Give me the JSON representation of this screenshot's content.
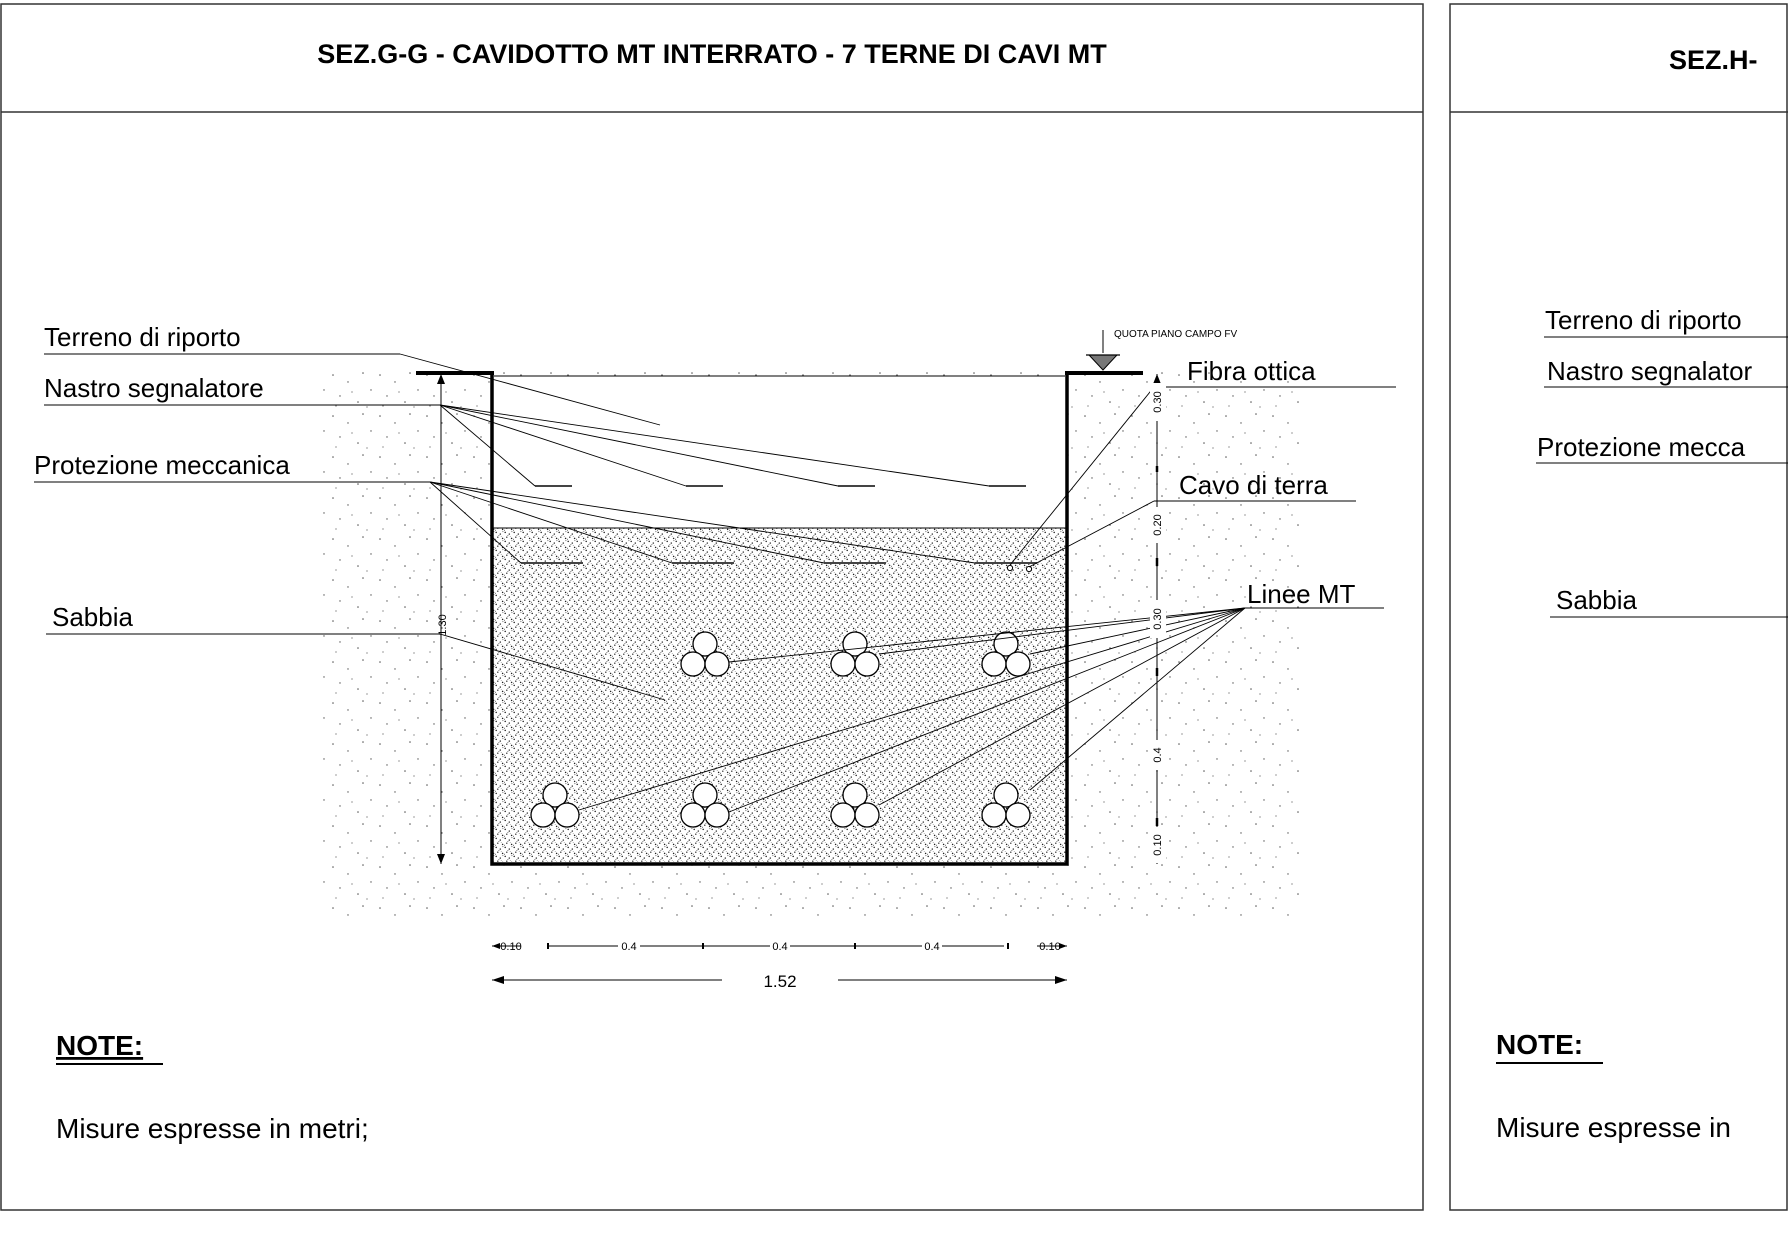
{
  "left_panel": {
    "title": "SEZ.G-G - CAVIDOTTO MT  INTERRATO - 7 TERNE DI CAVI MT",
    "labels": {
      "terreno": "Terreno di riporto",
      "nastro": "Nastro segnalatore",
      "protezione": "Protezione meccanica",
      "sabbia": "Sabbia",
      "fibra": "Fibra ottica",
      "cavo_terra": "Cavo di terra",
      "linee_mt": "Linee MT",
      "quota": "QUOTA PIANO CAMPO FV"
    },
    "vertical_dims": {
      "total": "1.30",
      "d1": "0.30",
      "d2": "0.20",
      "d3": "0.30",
      "d4": "0.4",
      "d5": "0.10"
    },
    "horizontal_dims": {
      "edge_left": "0.10",
      "span1": "0.4",
      "span2": "0.4",
      "span3": "0.4",
      "edge_right": "0.10",
      "total": "1.52"
    },
    "note_heading": "NOTE:",
    "note_text": "Misure espresse in metri;"
  },
  "right_panel": {
    "title": "SEZ.H-",
    "labels": {
      "terreno": "Terreno di riporto",
      "nastro": "Nastro segnalator",
      "protezione": "Protezione mecca",
      "sabbia": "Sabbia"
    },
    "note_heading": "NOTE:",
    "note_text": "Misure espresse in"
  }
}
